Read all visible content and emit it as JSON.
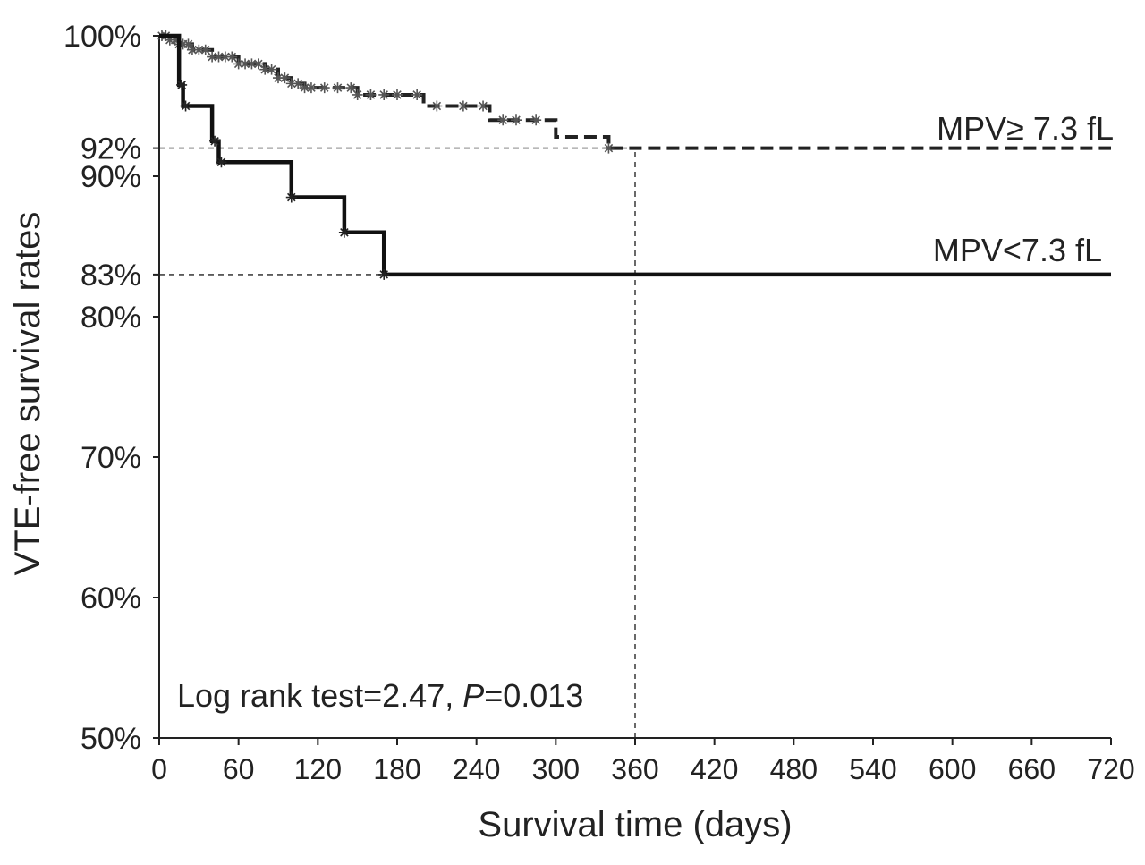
{
  "chart_data": {
    "type": "line",
    "subtype": "kaplan-meier-step",
    "xlabel": "Survival time (days)",
    "ylabel": "VTE-free survival rates",
    "xlim": [
      0,
      720
    ],
    "ylim": [
      50,
      100
    ],
    "x_ticks": [
      0,
      60,
      120,
      180,
      240,
      300,
      360,
      420,
      480,
      540,
      600,
      660,
      720
    ],
    "x_tick_labels": [
      "0",
      "60",
      "120",
      "180",
      "240",
      "300",
      "360",
      "420",
      "480",
      "540",
      "600",
      "660",
      "720"
    ],
    "y_ticks": [
      100,
      92,
      90,
      83,
      80,
      70,
      60,
      50
    ],
    "y_tick_labels": [
      "100%",
      "92%",
      "90%",
      "83%",
      "80%",
      "70%",
      "60%",
      "50%"
    ],
    "grid": false,
    "reference_lines": [
      {
        "kind": "horizontal",
        "y": 92,
        "x_from": 0,
        "x_to": 360
      },
      {
        "kind": "horizontal",
        "y": 83,
        "x_from": 0,
        "x_to": 170
      },
      {
        "kind": "vertical",
        "x": 360,
        "y_from": 50,
        "y_to": 92
      }
    ],
    "series": [
      {
        "name": "MPV≥ 7.3 fL",
        "line_style": "dashed",
        "color": "#222222",
        "x": [
          0,
          8,
          15,
          25,
          40,
          60,
          80,
          90,
          100,
          110,
          150,
          200,
          250,
          300,
          340,
          720
        ],
        "values": [
          100,
          99.7,
          99.4,
          99,
          98.5,
          98,
          97.6,
          97,
          96.6,
          96.3,
          95.8,
          95,
          94,
          92.8,
          92,
          92
        ],
        "censored_x": [
          2,
          5,
          8,
          12,
          15,
          18,
          22,
          25,
          30,
          35,
          40,
          45,
          50,
          55,
          60,
          65,
          70,
          75,
          80,
          85,
          90,
          95,
          100,
          105,
          110,
          115,
          125,
          135,
          145,
          150,
          160,
          170,
          180,
          195,
          210,
          230,
          245,
          260,
          270,
          285,
          340
        ]
      },
      {
        "name": "MPV<7.3 fL",
        "line_style": "solid",
        "color": "#111111",
        "x": [
          0,
          15,
          18,
          40,
          45,
          100,
          140,
          170,
          720
        ],
        "values": [
          100,
          96.5,
          95,
          92.5,
          91,
          88.5,
          86,
          83,
          83
        ],
        "censored_x": [
          17,
          20,
          42,
          47,
          100,
          140,
          170
        ]
      }
    ],
    "annotations": [
      {
        "text_plain": "Log rank test=2.47, ",
        "text_italic": "P",
        "text_rest": "=0.013",
        "position": "bottom-left"
      }
    ]
  }
}
